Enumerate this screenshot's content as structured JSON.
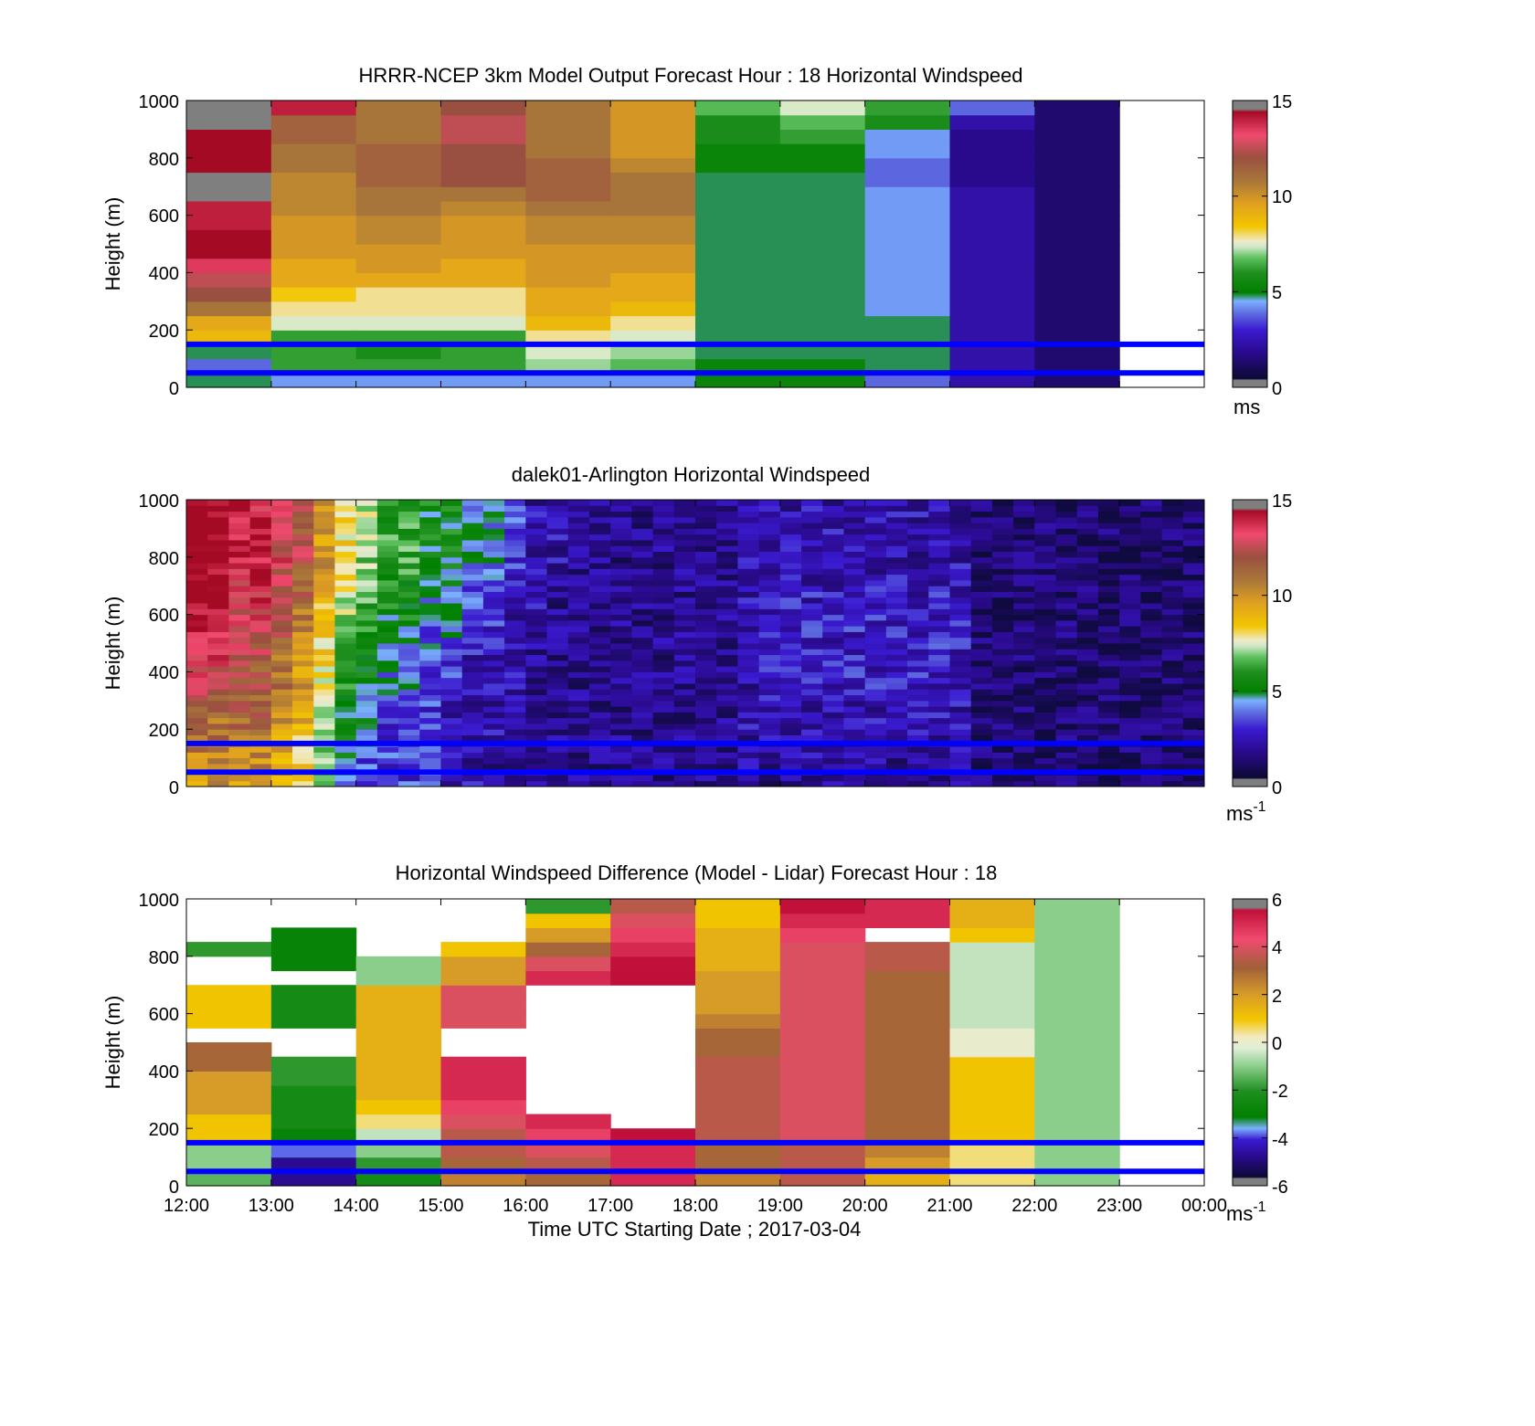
{
  "figure": {
    "x_axis_label": "Time UTC  Starting Date ; 2017-03-04",
    "x_ticks": [
      "12:00",
      "13:00",
      "14:00",
      "15:00",
      "16:00",
      "17:00",
      "18:00",
      "19:00",
      "20:00",
      "21:00",
      "22:00",
      "23:00",
      "00:00"
    ]
  },
  "chart_data": [
    {
      "type": "heatmap",
      "title": "HRRR-NCEP 3km Model Output   Forecast Hour : 18 Horizontal Windspeed",
      "ylabel": "Height (m)",
      "xlim": [
        "12:00",
        "00:00"
      ],
      "ylim": [
        0,
        1000
      ],
      "y_ticks": [
        "0",
        "200",
        "400",
        "600",
        "800",
        "1000"
      ],
      "colorbar": {
        "min": 0,
        "max": 15,
        "ticks": [
          "0",
          "5",
          "10",
          "15"
        ],
        "unit": "ms",
        "unit_sup": ""
      },
      "reference_lines_m": [
        50,
        150
      ],
      "reference_line_color": "#0000ff",
      "x_hours": [
        "12:00",
        "13:00",
        "14:00",
        "15:00",
        "16:00",
        "17:00",
        "18:00",
        "19:00",
        "20:00",
        "21:00",
        "22:00"
      ],
      "y_bins_m": [
        0,
        50,
        100,
        150,
        200,
        250,
        300,
        350,
        400,
        450,
        500,
        550,
        600,
        650,
        700,
        750,
        800,
        850,
        900,
        950,
        1000
      ],
      "values_approx": [
        [
          4.5,
          3.5,
          4.5,
          9,
          9.5,
          11,
          12,
          12.5,
          13.5,
          14.5,
          14.5,
          14,
          14,
          15.5,
          15.5,
          14.5,
          14.5,
          14.5,
          15.5,
          15.5
        ],
        [
          4,
          6,
          6,
          6,
          7.5,
          8,
          8.5,
          9.5,
          9.5,
          10,
          10,
          10,
          10.5,
          10.5,
          10.5,
          11,
          11,
          11.5,
          11.5,
          14
        ],
        [
          4,
          6,
          5.5,
          6,
          7.5,
          8,
          8,
          9.5,
          10,
          10,
          10.5,
          10.5,
          11,
          11,
          11.5,
          11.5,
          11.5,
          11,
          11,
          11
        ],
        [
          4,
          6,
          6,
          6,
          7.5,
          8,
          8,
          9.5,
          9.5,
          10,
          10,
          10,
          10.5,
          11,
          12,
          12,
          12,
          12.5,
          12.5,
          12
        ],
        [
          4,
          7,
          7.5,
          8,
          9,
          9.5,
          9.5,
          10,
          10,
          10,
          10.5,
          10.5,
          11,
          11.5,
          11.5,
          11.5,
          11,
          11,
          11,
          11
        ],
        [
          4,
          6.5,
          7,
          7.5,
          8,
          9,
          9.5,
          9.5,
          10,
          10,
          10.5,
          10.5,
          11,
          11,
          11,
          10.5,
          10,
          10,
          10,
          10
        ],
        [
          5,
          5,
          4.5,
          4.5,
          4.5,
          4.5,
          4.5,
          4.5,
          4.5,
          4.5,
          4.5,
          4.5,
          4.5,
          4.5,
          4.5,
          5,
          5,
          5.5,
          5.5,
          6.5
        ],
        [
          5,
          5,
          4.5,
          4.5,
          4.5,
          4.5,
          4.5,
          4.5,
          4.5,
          4.5,
          4.5,
          4.5,
          4.5,
          4.5,
          4.5,
          5,
          5,
          6,
          6.5,
          7.5
        ],
        [
          3.5,
          4.5,
          4.5,
          4.5,
          4.5,
          4,
          4,
          4,
          4,
          4,
          4,
          4,
          4,
          4,
          3.5,
          3.5,
          4,
          4,
          5.5,
          6
        ],
        [
          2,
          2,
          2,
          2,
          2,
          2,
          2,
          2,
          2,
          2,
          2,
          2,
          2,
          2,
          1.5,
          1.5,
          1.5,
          1.5,
          2,
          3.5
        ],
        [
          1,
          1,
          1,
          1,
          1,
          1,
          1,
          1,
          1,
          1,
          1,
          1,
          1,
          1,
          1,
          1,
          1,
          1,
          1,
          1
        ]
      ]
    },
    {
      "type": "heatmap",
      "title": "dalek01-Arlington  Horizontal Windspeed",
      "ylabel": "Height (m)",
      "xlim": [
        "12:00",
        "00:00"
      ],
      "ylim": [
        0,
        1000
      ],
      "y_ticks": [
        "0",
        "200",
        "400",
        "600",
        "800",
        "1000"
      ],
      "colorbar": {
        "min": 0,
        "max": 15,
        "ticks": [
          "0",
          "5",
          "10",
          "15"
        ],
        "unit": "ms",
        "unit_sup": "-1"
      },
      "reference_lines_m": [
        50,
        150
      ],
      "reference_line_color": "#0000ff",
      "x_hours_start": "12:00",
      "x_step_minutes": 15,
      "height_anchors_m": [
        0,
        200,
        400,
        600,
        800,
        1000
      ],
      "values_approx": [
        [
          10,
          11,
          13,
          14,
          15
        ],
        [
          10,
          11,
          13,
          14,
          15
        ],
        [
          10,
          11,
          12,
          13,
          14
        ],
        [
          10,
          11,
          12,
          13,
          14
        ],
        [
          9,
          10,
          11,
          12,
          13
        ],
        [
          8,
          9,
          10,
          11,
          12
        ],
        [
          6,
          7,
          8,
          9,
          10
        ],
        [
          4,
          5,
          6,
          7,
          8
        ],
        [
          3,
          4,
          5,
          6,
          7
        ],
        [
          3,
          3,
          4,
          5,
          6
        ],
        [
          3,
          3,
          4,
          5,
          6
        ],
        [
          3,
          3,
          3,
          4,
          5
        ],
        [
          2,
          2,
          3,
          4,
          5
        ],
        [
          2,
          2,
          2,
          3,
          4
        ],
        [
          1.5,
          2,
          2,
          3,
          4
        ],
        [
          1.5,
          1.5,
          2,
          2,
          3
        ],
        [
          1.5,
          1.5,
          1.5,
          2,
          2
        ],
        [
          1.5,
          1.5,
          1.5,
          1.5,
          2
        ],
        [
          1.5,
          1.5,
          1.5,
          1.5,
          1.5
        ],
        [
          1.5,
          1.5,
          1.5,
          1.5,
          1.5
        ],
        [
          1.5,
          1.5,
          1.5,
          1.5,
          1.5
        ],
        [
          1.5,
          1.5,
          1.5,
          1.5,
          1.5
        ],
        [
          1.5,
          1.5,
          1.5,
          1.5,
          1.5
        ],
        [
          1.5,
          1.5,
          1.5,
          1.5,
          1.5
        ],
        [
          1.5,
          1.5,
          1.5,
          1.5,
          1.5
        ],
        [
          1.5,
          1.5,
          1.5,
          1.5,
          1.5
        ],
        [
          1.5,
          2,
          2,
          2,
          2
        ],
        [
          1.5,
          2,
          2.5,
          2.5,
          2
        ],
        [
          1.5,
          2,
          2.5,
          2.5,
          2
        ],
        [
          1.5,
          2,
          2.5,
          2.5,
          2
        ],
        [
          1.5,
          2,
          2.5,
          2.5,
          2
        ],
        [
          1.5,
          2,
          2.5,
          2.5,
          2
        ],
        [
          1.5,
          2,
          2.5,
          2.5,
          2
        ],
        [
          1.5,
          2,
          2.5,
          2.5,
          2
        ],
        [
          1.5,
          2,
          2.5,
          2.5,
          2
        ],
        [
          1.5,
          2,
          2.5,
          2.5,
          2
        ],
        [
          1.5,
          2,
          2.5,
          2.5,
          2
        ],
        [
          1,
          1,
          1,
          1,
          1
        ],
        [
          1,
          1,
          1,
          1,
          1
        ],
        [
          1,
          1,
          1,
          1,
          1
        ],
        [
          1,
          1,
          1,
          1,
          1
        ],
        [
          1,
          1,
          1,
          1,
          1
        ],
        [
          1,
          1,
          1,
          1,
          1
        ],
        [
          1,
          1,
          1,
          1,
          1
        ],
        [
          1,
          1,
          1,
          1,
          1
        ],
        [
          1,
          1,
          1,
          1,
          1
        ],
        [
          1,
          1,
          1,
          1,
          1
        ],
        [
          1,
          1,
          1,
          1,
          1
        ]
      ]
    },
    {
      "type": "heatmap",
      "title": "Horizontal Windspeed Difference (Model - Lidar) Forecast Hour : 18",
      "ylabel": "Height (m)",
      "xlim": [
        "12:00",
        "00:00"
      ],
      "ylim": [
        0,
        1000
      ],
      "y_ticks": [
        "0",
        "200",
        "400",
        "600",
        "800",
        "1000"
      ],
      "colorbar": {
        "min": -6,
        "max": 6,
        "ticks": [
          "-6",
          "-4",
          "-2",
          "0",
          "2",
          "4",
          "6"
        ],
        "unit": "ms",
        "unit_sup": "-1"
      },
      "reference_lines_m": [
        50,
        150
      ],
      "reference_line_color": "#0000ff",
      "x_hours": [
        "12:00",
        "13:00",
        "14:00",
        "15:00",
        "16:00",
        "17:00",
        "18:00",
        "19:00",
        "20:00",
        "21:00",
        "22:00"
      ],
      "y_bins_m": [
        0,
        50,
        100,
        150,
        200,
        250,
        300,
        350,
        400,
        450,
        500,
        550,
        600,
        650,
        700,
        750,
        800,
        850,
        900,
        950,
        1000
      ],
      "values_approx": [
        [
          -1.5,
          -1,
          -1,
          1,
          1,
          2,
          2,
          2,
          3,
          3,
          null,
          1,
          1,
          1,
          null,
          null,
          -2,
          null,
          null,
          null
        ],
        [
          -5,
          -5,
          -4,
          -3,
          -2.5,
          -2.5,
          -2.5,
          -2,
          -2,
          null,
          null,
          -2.5,
          -2.5,
          -2.5,
          null,
          -3,
          -3,
          -3,
          null,
          null
        ],
        [
          -2.5,
          -2,
          -1,
          -0.5,
          0.5,
          1,
          1.5,
          1.5,
          1.5,
          1.5,
          1.5,
          1.5,
          1.5,
          1.5,
          -1,
          -1,
          null,
          null,
          null,
          null
        ],
        [
          2.5,
          3,
          3.5,
          3.5,
          4,
          4.5,
          5,
          5,
          5,
          null,
          null,
          4,
          4,
          4,
          2,
          2,
          1,
          null,
          null,
          null
        ],
        [
          3,
          3.5,
          4,
          4.5,
          5,
          null,
          null,
          null,
          null,
          null,
          null,
          null,
          null,
          null,
          5,
          4,
          3,
          2,
          1,
          -2
        ],
        [
          5,
          5,
          5,
          6,
          null,
          null,
          null,
          null,
          null,
          null,
          null,
          null,
          null,
          null,
          6,
          5.5,
          5,
          4.5,
          4,
          3.5
        ],
        [
          2.5,
          3,
          3,
          3.5,
          3.5,
          3.5,
          3.5,
          3.5,
          3.5,
          3,
          3,
          2.5,
          2,
          2,
          2,
          1.5,
          1.5,
          1.5,
          1,
          1
        ],
        [
          3.5,
          3.5,
          3.5,
          4,
          4,
          4,
          4,
          4,
          4,
          4,
          4,
          4,
          4,
          4,
          4,
          4,
          4,
          4.5,
          5,
          5.5
        ],
        [
          1.5,
          2,
          2.5,
          3,
          3,
          3,
          3,
          3,
          3,
          3,
          3,
          3,
          3,
          3,
          3,
          3.5,
          3.5,
          null,
          5,
          5
        ],
        [
          0.5,
          0.5,
          0.5,
          1,
          1,
          1,
          1,
          1,
          1,
          0,
          0,
          -0.5,
          -0.5,
          -0.5,
          -0.5,
          -0.5,
          -0.5,
          1,
          1.5,
          1.5
        ],
        [
          -1,
          -1,
          -1,
          -1,
          -1,
          -1,
          -1,
          -1,
          -1,
          -1,
          -1,
          -1,
          -1,
          -1,
          -1,
          -1,
          -1,
          -1,
          -1,
          -1
        ]
      ]
    }
  ]
}
